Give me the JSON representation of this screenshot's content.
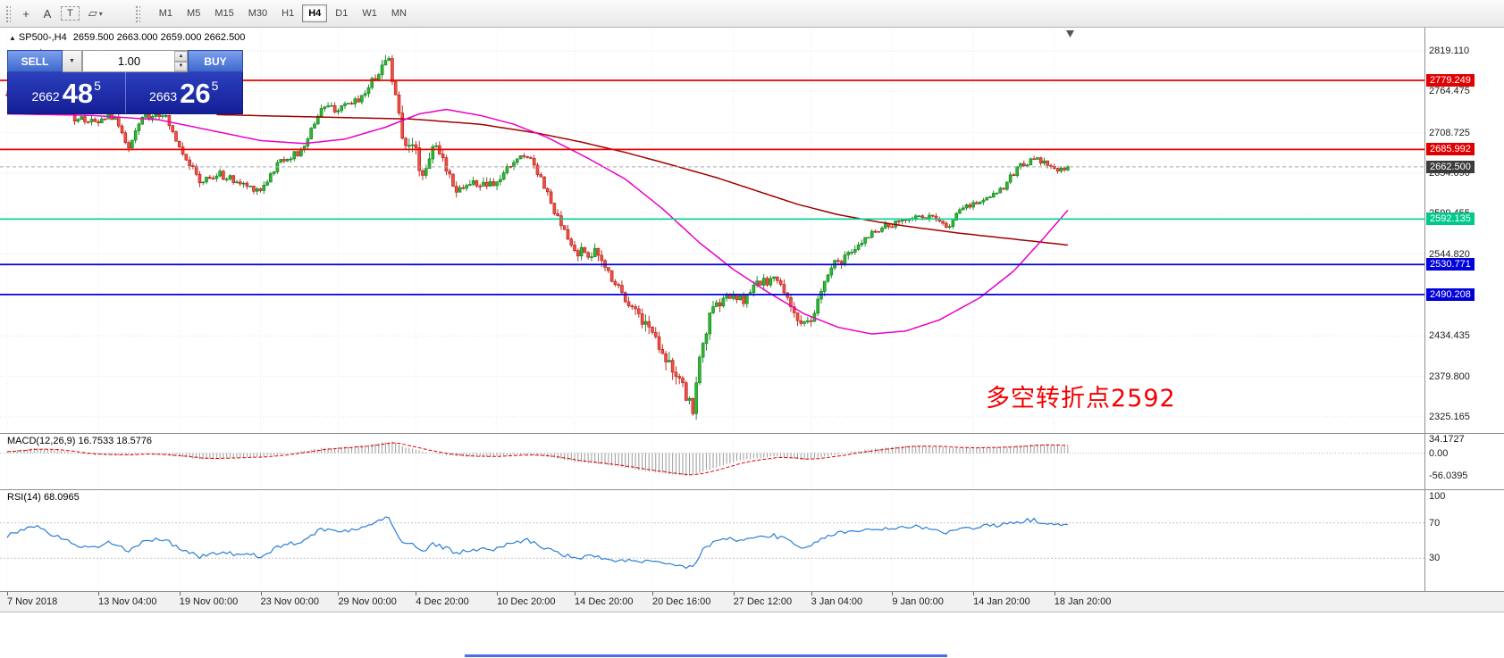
{
  "toolbar": {
    "tools": [
      {
        "name": "crosshair",
        "glyph": "+"
      },
      {
        "name": "text-label",
        "glyph": "A"
      },
      {
        "name": "text-frame",
        "glyph": "T"
      },
      {
        "name": "shapes",
        "glyph": "▱"
      }
    ],
    "timeframes": [
      "M1",
      "M5",
      "M15",
      "M30",
      "H1",
      "H4",
      "D1",
      "W1",
      "MN"
    ],
    "active_timeframe": "H4"
  },
  "chart": {
    "symbol_period": "SP500-,H4",
    "ohlc_text": "2659.500 2663.000 2659.000 2662.500",
    "annotation": "多空转折点2592",
    "annotation_color": "#f30000"
  },
  "trade_panel": {
    "sell_label": "SELL",
    "buy_label": "BUY",
    "volume": "1.00",
    "sell_price": {
      "prefix": "2662",
      "big": "48",
      "sup": "5"
    },
    "buy_price": {
      "prefix": "2663",
      "big": "26",
      "sup": "5"
    }
  },
  "price_axis": {
    "gridline_labels": [
      "2819.110",
      "2764.475",
      "2708.725",
      "2654.090",
      "2599.455",
      "2544.820",
      "2434.435",
      "2379.800",
      "2325.165"
    ],
    "badges": [
      {
        "value": "2779.249",
        "bg": "#e00000"
      },
      {
        "value": "2685.992",
        "bg": "#e00000"
      },
      {
        "value": "2662.500",
        "bg": "#3c3c3c"
      },
      {
        "value": "2592.135",
        "bg": "#00c98c"
      },
      {
        "value": "2530.771",
        "bg": "#0000d8"
      },
      {
        "value": "2490.208",
        "bg": "#0000d8"
      }
    ]
  },
  "macd_panel": {
    "label": "MACD(12,26,9) 16.7533 18.5776",
    "axis_labels": [
      "34.1727",
      "0.00",
      "-56.0395"
    ]
  },
  "rsi_panel": {
    "label": "RSI(14) 68.0965",
    "axis_labels": [
      "100",
      "70",
      "30"
    ]
  },
  "time_axis": {
    "ticks": [
      [
        0,
        "7 Nov 2018"
      ],
      [
        27,
        "13 Nov 04:00"
      ],
      [
        51,
        "19 Nov 00:00"
      ],
      [
        75,
        "23 Nov 00:00"
      ],
      [
        98,
        "29 Nov 00:00"
      ],
      [
        121,
        "4 Dec 20:00"
      ],
      [
        145,
        "10 Dec 20:00"
      ],
      [
        168,
        "14 Dec 20:00"
      ],
      [
        191,
        "20 Dec 16:00"
      ],
      [
        215,
        "27 Dec 12:00"
      ],
      [
        238,
        "3 Jan 04:00"
      ],
      [
        262,
        "9 Jan 00:00"
      ],
      [
        286,
        "14 Jan 20:00"
      ],
      [
        310,
        "18 Jan 20:00"
      ]
    ]
  },
  "chart_data": {
    "type": "candlestick",
    "symbol": "SP500-",
    "period": "H4",
    "bars": 315,
    "current_price": 2662.5,
    "h_lines": [
      {
        "value": 2779.249,
        "color": "#ee0000"
      },
      {
        "value": 2685.992,
        "color": "#ee0000"
      },
      {
        "value": 2592.135,
        "color": "#00d48e"
      },
      {
        "value": 2530.771,
        "color": "#0000dd"
      },
      {
        "value": 2490.208,
        "color": "#0000dd"
      }
    ],
    "price_waypoints": [
      [
        0,
        2760
      ],
      [
        5,
        2802
      ],
      [
        9,
        2812
      ],
      [
        13,
        2792
      ],
      [
        17,
        2770
      ],
      [
        20,
        2728
      ],
      [
        24,
        2726
      ],
      [
        27,
        2720
      ],
      [
        30,
        2736
      ],
      [
        34,
        2712
      ],
      [
        36,
        2684
      ],
      [
        40,
        2730
      ],
      [
        46,
        2736
      ],
      [
        51,
        2692
      ],
      [
        57,
        2642
      ],
      [
        63,
        2652
      ],
      [
        70,
        2638
      ],
      [
        75,
        2632
      ],
      [
        81,
        2672
      ],
      [
        87,
        2682
      ],
      [
        93,
        2743
      ],
      [
        99,
        2740
      ],
      [
        105,
        2758
      ],
      [
        111,
        2798
      ],
      [
        113,
        2812
      ],
      [
        117,
        2702
      ],
      [
        120,
        2696
      ],
      [
        123,
        2650
      ],
      [
        126,
        2692
      ],
      [
        130,
        2662
      ],
      [
        133,
        2633
      ],
      [
        138,
        2640
      ],
      [
        144,
        2636
      ],
      [
        150,
        2670
      ],
      [
        154,
        2680
      ],
      [
        158,
        2650
      ],
      [
        162,
        2600
      ],
      [
        168,
        2548
      ],
      [
        174,
        2546
      ],
      [
        180,
        2508
      ],
      [
        186,
        2468
      ],
      [
        191,
        2440
      ],
      [
        196,
        2400
      ],
      [
        199,
        2368
      ],
      [
        203,
        2338
      ],
      [
        206,
        2430
      ],
      [
        209,
        2470
      ],
      [
        213,
        2488
      ],
      [
        218,
        2482
      ],
      [
        222,
        2504
      ],
      [
        227,
        2512
      ],
      [
        231,
        2488
      ],
      [
        235,
        2446
      ],
      [
        238,
        2452
      ],
      [
        242,
        2508
      ],
      [
        245,
        2531
      ],
      [
        250,
        2545
      ],
      [
        256,
        2576
      ],
      [
        262,
        2584
      ],
      [
        268,
        2596
      ],
      [
        274,
        2594
      ],
      [
        278,
        2580
      ],
      [
        283,
        2608
      ],
      [
        289,
        2618
      ],
      [
        295,
        2636
      ],
      [
        300,
        2666
      ],
      [
        304,
        2672
      ],
      [
        308,
        2666
      ],
      [
        311,
        2656
      ],
      [
        314,
        2662.5
      ]
    ],
    "volatility_waypoints": [
      [
        0,
        10
      ],
      [
        20,
        12
      ],
      [
        50,
        12
      ],
      [
        90,
        10
      ],
      [
        110,
        13
      ],
      [
        116,
        22
      ],
      [
        124,
        18
      ],
      [
        135,
        14
      ],
      [
        160,
        12
      ],
      [
        170,
        16
      ],
      [
        190,
        20
      ],
      [
        200,
        26
      ],
      [
        206,
        22
      ],
      [
        215,
        14
      ],
      [
        232,
        16
      ],
      [
        242,
        14
      ],
      [
        258,
        10
      ],
      [
        275,
        8
      ],
      [
        295,
        9
      ],
      [
        305,
        10
      ],
      [
        314,
        7
      ]
    ],
    "ma_fast_color": "#e800c8",
    "ma_slow_color": "#a00000",
    "ma_fast": [
      [
        0,
        2734
      ],
      [
        25,
        2732
      ],
      [
        45,
        2726
      ],
      [
        60,
        2712
      ],
      [
        75,
        2698
      ],
      [
        88,
        2694
      ],
      [
        100,
        2700
      ],
      [
        112,
        2716
      ],
      [
        122,
        2734
      ],
      [
        130,
        2740
      ],
      [
        140,
        2732
      ],
      [
        150,
        2720
      ],
      [
        160,
        2702
      ],
      [
        172,
        2674
      ],
      [
        183,
        2646
      ],
      [
        194,
        2606
      ],
      [
        205,
        2560
      ],
      [
        215,
        2524
      ],
      [
        225,
        2494
      ],
      [
        236,
        2464
      ],
      [
        246,
        2446
      ],
      [
        256,
        2437
      ],
      [
        266,
        2441
      ],
      [
        276,
        2456
      ],
      [
        288,
        2486
      ],
      [
        298,
        2522
      ],
      [
        306,
        2562
      ],
      [
        314,
        2604
      ]
    ],
    "ma_slow": [
      [
        62,
        2733
      ],
      [
        80,
        2731
      ],
      [
        100,
        2729
      ],
      [
        120,
        2727
      ],
      [
        140,
        2720
      ],
      [
        157,
        2708
      ],
      [
        170,
        2696
      ],
      [
        183,
        2682
      ],
      [
        196,
        2666
      ],
      [
        210,
        2648
      ],
      [
        222,
        2630
      ],
      [
        234,
        2612
      ],
      [
        246,
        2598
      ],
      [
        258,
        2588
      ],
      [
        270,
        2580
      ],
      [
        282,
        2573
      ],
      [
        294,
        2567
      ],
      [
        304,
        2562
      ],
      [
        314,
        2557
      ]
    ],
    "macd_current": [
      16.7533,
      18.5776
    ],
    "macd_range": [
      34.1727,
      -56.0395
    ],
    "macd_waypoints": [
      [
        0,
        4
      ],
      [
        8,
        12
      ],
      [
        14,
        8
      ],
      [
        20,
        0
      ],
      [
        27,
        -5
      ],
      [
        34,
        -4
      ],
      [
        40,
        -2
      ],
      [
        46,
        -4
      ],
      [
        51,
        -9
      ],
      [
        57,
        -15
      ],
      [
        63,
        -13
      ],
      [
        70,
        -11
      ],
      [
        75,
        -9
      ],
      [
        81,
        -3
      ],
      [
        87,
        4
      ],
      [
        93,
        12
      ],
      [
        99,
        15
      ],
      [
        105,
        18
      ],
      [
        111,
        26
      ],
      [
        114,
        30
      ],
      [
        118,
        14
      ],
      [
        124,
        2
      ],
      [
        130,
        -5
      ],
      [
        134,
        -8
      ],
      [
        140,
        -9
      ],
      [
        146,
        -7
      ],
      [
        151,
        -3
      ],
      [
        156,
        -5
      ],
      [
        162,
        -12
      ],
      [
        168,
        -22
      ],
      [
        174,
        -26
      ],
      [
        180,
        -32
      ],
      [
        186,
        -40
      ],
      [
        192,
        -48
      ],
      [
        197,
        -53
      ],
      [
        202,
        -56
      ],
      [
        206,
        -46
      ],
      [
        211,
        -32
      ],
      [
        216,
        -20
      ],
      [
        221,
        -13
      ],
      [
        227,
        -9
      ],
      [
        231,
        -11
      ],
      [
        236,
        -17
      ],
      [
        240,
        -12
      ],
      [
        245,
        -4
      ],
      [
        251,
        4
      ],
      [
        257,
        11
      ],
      [
        263,
        16
      ],
      [
        269,
        19
      ],
      [
        275,
        17
      ],
      [
        280,
        13
      ],
      [
        285,
        12
      ],
      [
        290,
        14
      ],
      [
        296,
        16
      ],
      [
        301,
        19
      ],
      [
        306,
        22
      ],
      [
        310,
        20
      ],
      [
        314,
        16.75
      ]
    ],
    "rsi_current": 68.0965,
    "rsi_levels": [
      70,
      30
    ],
    "rsi_waypoints": [
      [
        0,
        55
      ],
      [
        5,
        64
      ],
      [
        9,
        68
      ],
      [
        13,
        58
      ],
      [
        17,
        52
      ],
      [
        20,
        44
      ],
      [
        24,
        43
      ],
      [
        27,
        41
      ],
      [
        30,
        48
      ],
      [
        34,
        42
      ],
      [
        36,
        37
      ],
      [
        40,
        48
      ],
      [
        46,
        52
      ],
      [
        51,
        42
      ],
      [
        57,
        32
      ],
      [
        63,
        37
      ],
      [
        70,
        34
      ],
      [
        75,
        33
      ],
      [
        81,
        44
      ],
      [
        87,
        49
      ],
      [
        93,
        63
      ],
      [
        99,
        60
      ],
      [
        105,
        66
      ],
      [
        111,
        74
      ],
      [
        113,
        76
      ],
      [
        117,
        47
      ],
      [
        120,
        45
      ],
      [
        123,
        38
      ],
      [
        126,
        46
      ],
      [
        130,
        41
      ],
      [
        133,
        36
      ],
      [
        138,
        40
      ],
      [
        144,
        40
      ],
      [
        150,
        48
      ],
      [
        154,
        51
      ],
      [
        158,
        44
      ],
      [
        162,
        37
      ],
      [
        168,
        30
      ],
      [
        174,
        32
      ],
      [
        180,
        28
      ],
      [
        186,
        26
      ],
      [
        191,
        25
      ],
      [
        196,
        23
      ],
      [
        199,
        21
      ],
      [
        203,
        20
      ],
      [
        206,
        40
      ],
      [
        209,
        48
      ],
      [
        213,
        52
      ],
      [
        218,
        50
      ],
      [
        222,
        54
      ],
      [
        227,
        56
      ],
      [
        231,
        50
      ],
      [
        235,
        41
      ],
      [
        238,
        43
      ],
      [
        242,
        54
      ],
      [
        245,
        58
      ],
      [
        250,
        60
      ],
      [
        256,
        63
      ],
      [
        262,
        64
      ],
      [
        268,
        66
      ],
      [
        274,
        64
      ],
      [
        278,
        59
      ],
      [
        283,
        64
      ],
      [
        289,
        66
      ],
      [
        295,
        68
      ],
      [
        300,
        72
      ],
      [
        304,
        73
      ],
      [
        308,
        70
      ],
      [
        311,
        67
      ],
      [
        314,
        68.1
      ]
    ]
  }
}
